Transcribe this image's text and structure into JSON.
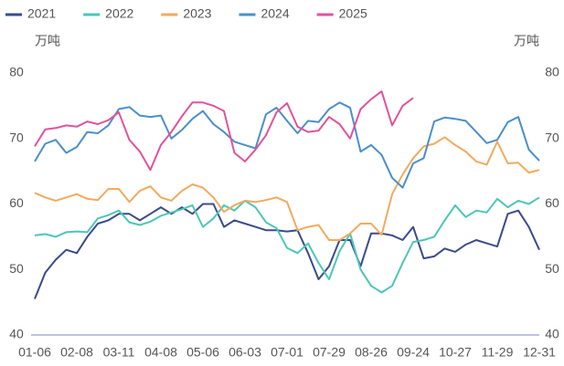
{
  "chart_data": {
    "type": "line",
    "y_unit": "万吨",
    "y2_unit": "万吨",
    "categories": [
      "01-06",
      null,
      null,
      null,
      "02-08",
      null,
      null,
      null,
      "03-11",
      null,
      null,
      null,
      "04-08",
      null,
      null,
      null,
      "05-06",
      null,
      null,
      null,
      "06-03",
      null,
      null,
      null,
      "07-01",
      null,
      null,
      null,
      "07-29",
      null,
      null,
      null,
      "08-26",
      null,
      null,
      null,
      "09-24",
      null,
      null,
      null,
      "10-27",
      null,
      null,
      null,
      "11-29",
      null,
      null,
      null,
      "12-31"
    ],
    "series": [
      {
        "name": "2021",
        "color": "#3b4a8c",
        "values": [
          45.5,
          49.5,
          51.5,
          53,
          52.5,
          55,
          57,
          57.5,
          58.5,
          58.5,
          57.5,
          58.5,
          59.5,
          58.5,
          59.5,
          58.5,
          60,
          60,
          56.5,
          57.5,
          57,
          56.5,
          56,
          56,
          55.8,
          56,
          52.5,
          48.5,
          50.5,
          54.5,
          54.5,
          50.5,
          55.5,
          55.5,
          55.2,
          54.5,
          56.5,
          51.7,
          52,
          53.2,
          52.7,
          53.8,
          54.5,
          54,
          53.5,
          58.5,
          59,
          56.5,
          53
        ]
      },
      {
        "name": "2022",
        "color": "#4dc6b6",
        "values": [
          55.2,
          55.4,
          55,
          55.7,
          55.8,
          55.7,
          57.8,
          58.3,
          59,
          57.2,
          56.8,
          57.3,
          58.2,
          58.7,
          59.2,
          59.8,
          56.5,
          57.8,
          59.8,
          59,
          60.5,
          59.5,
          57.2,
          56.3,
          53.3,
          52.5,
          54,
          51,
          48.5,
          52.8,
          55.5,
          50,
          47.5,
          46.5,
          47.5,
          51,
          54.2,
          54.5,
          55,
          57.5,
          59.8,
          58,
          59,
          58.7,
          60.8,
          59.5,
          60.5,
          60,
          61
        ]
      },
      {
        "name": "2023",
        "color": "#f2aa5e",
        "values": [
          61.7,
          61,
          60.5,
          61,
          61.5,
          60.8,
          60.6,
          62.3,
          62.3,
          60.3,
          62,
          62.7,
          61,
          60.5,
          62,
          63,
          62.5,
          61,
          58.8,
          59.8,
          60.5,
          60.3,
          60.6,
          61,
          60.3,
          56,
          56.5,
          56.8,
          54.5,
          54.5,
          55.5,
          57,
          57,
          55.3,
          61.5,
          64.5,
          67,
          68.8,
          69.2,
          70.2,
          69,
          68,
          66.5,
          66,
          69.5,
          66.2,
          66.3,
          64.8,
          65.2
        ]
      },
      {
        "name": "2024",
        "color": "#4a8fca",
        "values": [
          66.5,
          69.2,
          69.8,
          67.8,
          68.7,
          71,
          70.8,
          72,
          74.5,
          74.8,
          73.5,
          73.3,
          73.5,
          70,
          71.3,
          73,
          74.2,
          72.2,
          71,
          69.5,
          69,
          68.5,
          73.7,
          74.7,
          72.7,
          70.8,
          72.7,
          72.5,
          74.5,
          75.5,
          74.7,
          68,
          69,
          67.5,
          64,
          62.5,
          66.2,
          67,
          72.6,
          73.2,
          73,
          72.7,
          71,
          69.3,
          69.8,
          72.5,
          73.3,
          68.3,
          66.6
        ]
      },
      {
        "name": "2025",
        "color": "#e0539b",
        "values": [
          68.8,
          71.4,
          71.6,
          72,
          71.8,
          72.6,
          72.2,
          72.8,
          74,
          69.8,
          68,
          65.2,
          69,
          71,
          73.4,
          75.5,
          75.5,
          75,
          74.2,
          67.8,
          66.5,
          68.3,
          70.5,
          74,
          75.4,
          71.8,
          71,
          71.2,
          73.3,
          72.2,
          70,
          74.5,
          76,
          77.2,
          72,
          75,
          76.2,
          null,
          null,
          null,
          null,
          null,
          null,
          null,
          null,
          null,
          null,
          null,
          null
        ]
      }
    ],
    "ylim": [
      40,
      80
    ],
    "yticks": [
      40,
      50,
      60,
      70,
      80
    ],
    "y2lim": [
      40,
      80
    ],
    "y2ticks": [
      40,
      50,
      60,
      70,
      80
    ],
    "legend": "top-left"
  }
}
